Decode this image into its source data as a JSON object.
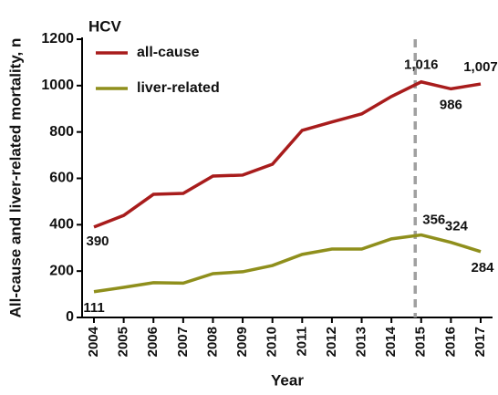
{
  "chart_data": {
    "type": "line",
    "legend_title": "HCV",
    "y_label": "All-cause and liver-related mortality, n",
    "x_label": "Year",
    "categories": [
      "2004",
      "2005",
      "2006",
      "2007",
      "2008",
      "2009",
      "2010",
      "2011",
      "2012",
      "2013",
      "2014",
      "2015",
      "2016",
      "2017"
    ],
    "series": [
      {
        "name": "all-cause",
        "color": "#a81c1c",
        "values": [
          390,
          440,
          531,
          535,
          610,
          614,
          661,
          807,
          843,
          878,
          953,
          1016,
          986,
          1007
        ],
        "value_labels": [
          "390",
          null,
          null,
          null,
          null,
          null,
          null,
          null,
          null,
          null,
          null,
          "1,016",
          "986",
          "1,007"
        ]
      },
      {
        "name": "liver-related",
        "color": "#8f8f1c",
        "values": [
          111,
          130,
          150,
          148,
          189,
          197,
          224,
          272,
          295,
          295,
          339,
          356,
          324,
          284
        ],
        "value_labels": [
          "111",
          null,
          null,
          null,
          null,
          null,
          null,
          null,
          null,
          null,
          null,
          "356",
          "324",
          "284"
        ]
      }
    ],
    "ylim": [
      0,
      1200
    ],
    "yticks": [
      0,
      200,
      400,
      600,
      800,
      1000,
      1200
    ],
    "grid": false
  }
}
